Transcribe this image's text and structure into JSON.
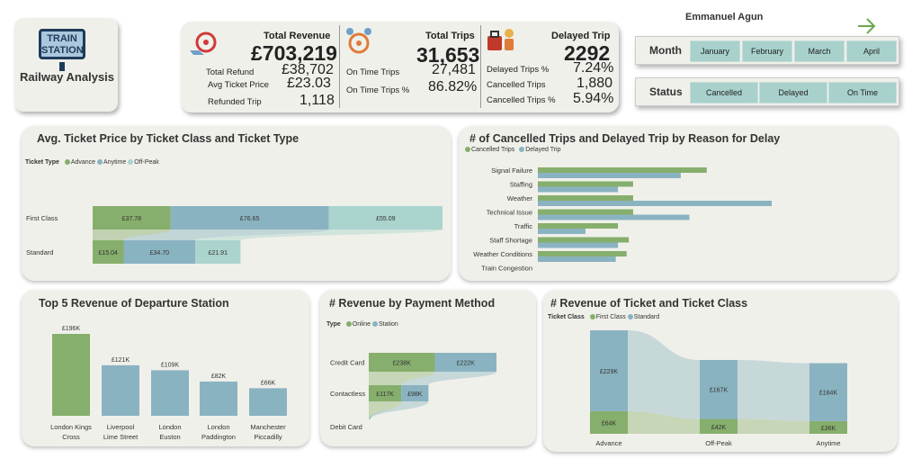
{
  "logo": {
    "line1": "TRAIN",
    "line2": "STATION",
    "title": "Railway Analysis"
  },
  "author": "Emmanuel Agun",
  "kpi": {
    "total_revenue_label": "Total Revenue",
    "total_revenue": "£703,219",
    "total_refund_label": "Total Refund",
    "total_refund": "£38,702",
    "avg_ticket_label": "Avg Ticket Price",
    "avg_ticket": "£23.03",
    "refunded_label": "Refunded Trip",
    "refunded": "1,118",
    "total_trips_label": "Total Trips",
    "total_trips": "31,653",
    "ontime_label": "On Time Trips",
    "ontime": "27,481",
    "ontime_pct_label": "On Time Trips %",
    "ontime_pct": "86.82%",
    "delayed_label": "Delayed Trip",
    "delayed": "2292",
    "delayed_pct_label": "Delayed Trips %",
    "delayed_pct": "7.24%",
    "cancelled_label": "Cancelled Trips",
    "cancelled": "1,880",
    "cancelled_pct_label": "Cancelled Trips %",
    "cancelled_pct": "5.94%"
  },
  "month_slicer": {
    "label": "Month",
    "options": [
      "January",
      "February",
      "March",
      "April"
    ]
  },
  "status_slicer": {
    "label": "Status",
    "options": [
      "Cancelled",
      "Delayed",
      "On Time"
    ]
  },
  "colors": {
    "green": "#86ae6c",
    "blue": "#8ab3c1",
    "teal": "#aad4cd",
    "card": "#f0f0ea"
  },
  "chart_data": [
    {
      "type": "bar",
      "title": "Avg. Ticket Price by Ticket Class and Ticket Type",
      "legend_title": "Ticket Type",
      "categories": [
        "First Class",
        "Standard"
      ],
      "series": [
        {
          "name": "Advance",
          "values": [
            37.78,
            15.04
          ],
          "labels": [
            "£37.78",
            "£15.04"
          ]
        },
        {
          "name": "Anytime",
          "values": [
            76.65,
            34.7
          ],
          "labels": [
            "£76.65",
            "£34.70"
          ]
        },
        {
          "name": "Off-Peak",
          "values": [
            55.09,
            21.91
          ],
          "labels": [
            "£55.09",
            "£21.91"
          ]
        }
      ],
      "stacked": true,
      "orientation": "horizontal",
      "legend": "top-left"
    },
    {
      "type": "bar",
      "title": "# of Cancelled Trips and Delayed Trip by Reason for Delay",
      "categories": [
        "Signal Failure",
        "Staffing",
        "Weather",
        "Technical Issue",
        "Traffic",
        "Staff Shortage",
        "Weather Conditions",
        "Train Congestion"
      ],
      "series": [
        {
          "name": "Cancelled Trips",
          "values": [
            390,
            220,
            220,
            220,
            185,
            210,
            205,
            0
          ]
        },
        {
          "name": "Delayed Trip",
          "values": [
            330,
            185,
            540,
            350,
            110,
            185,
            180,
            0
          ]
        }
      ],
      "orientation": "horizontal",
      "legend": "top-left"
    },
    {
      "type": "bar",
      "title": "Top 5 Revenue of Departure Station",
      "categories": [
        "London Kings Cross",
        "Liverpool Lime Street",
        "London Euston",
        "London Paddington",
        "Manchester Piccadilly"
      ],
      "values": [
        196,
        121,
        109,
        82,
        66
      ],
      "labels": [
        "£196K",
        "£121K",
        "£109K",
        "£82K",
        "£66K"
      ]
    },
    {
      "type": "bar",
      "title": "# Revenue by Payment Method",
      "legend_title": "Type",
      "categories": [
        "Credit Card",
        "Contactless",
        "Debit Card"
      ],
      "series": [
        {
          "name": "Online",
          "values": [
            238,
            117,
            0
          ],
          "labels": [
            "£238K",
            "£117K",
            ""
          ]
        },
        {
          "name": "Station",
          "values": [
            222,
            98,
            0
          ],
          "labels": [
            "£222K",
            "£98K",
            ""
          ]
        }
      ],
      "stacked": true,
      "orientation": "horizontal",
      "legend": "top-left"
    },
    {
      "type": "bar",
      "title": "# Revenue of Ticket and Ticket Class",
      "legend_title": "Ticket Class",
      "categories": [
        "Advance",
        "Off-Peak",
        "Anytime"
      ],
      "series": [
        {
          "name": "First Class",
          "values": [
            64,
            42,
            36
          ],
          "labels": [
            "£64K",
            "£42K",
            "£36K"
          ]
        },
        {
          "name": "Standard",
          "values": [
            229,
            167,
            164
          ],
          "labels": [
            "£229K",
            "£167K",
            "£164K"
          ]
        }
      ],
      "stacked": true,
      "orientation": "vertical",
      "legend": "top-left"
    }
  ]
}
